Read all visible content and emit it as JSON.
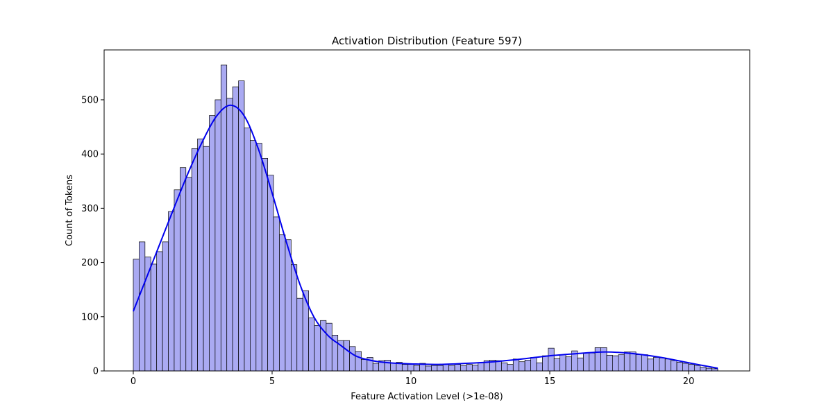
{
  "chart_data": {
    "type": "bar",
    "title": "Activation Distribution (Feature 597)",
    "xlabel": "Feature Activation Level (>1e-08)",
    "ylabel": "Count of Tokens",
    "xlim": [
      -1.05,
      22.2
    ],
    "ylim": [
      0,
      592
    ],
    "x_ticks": [
      0,
      5,
      10,
      15,
      20
    ],
    "y_ticks": [
      0,
      100,
      200,
      300,
      400,
      500
    ],
    "grid": false,
    "legend": "none",
    "bar_color": "#aaaaf2",
    "bar_edge_color": "#000000",
    "kde_color": "#0000ee",
    "bins": {
      "start": 0.0,
      "width": 0.2105,
      "counts": [
        206,
        238,
        210,
        197,
        220,
        238,
        294,
        334,
        375,
        357,
        410,
        428,
        414,
        471,
        500,
        564,
        503,
        524,
        535,
        448,
        425,
        420,
        392,
        361,
        284,
        251,
        242,
        196,
        134,
        148,
        98,
        84,
        93,
        88,
        66,
        56,
        56,
        45,
        36,
        21,
        25,
        14,
        19,
        20,
        14,
        16,
        12,
        12,
        10,
        14,
        9,
        10,
        10,
        12,
        10,
        12,
        10,
        12,
        11,
        15,
        19,
        20,
        19,
        15,
        12,
        22,
        17,
        20,
        25,
        15,
        28,
        42,
        23,
        30,
        26,
        37,
        24,
        33,
        33,
        43,
        43,
        29,
        28,
        30,
        35,
        35,
        30,
        30,
        22,
        25,
        24,
        22,
        19,
        16,
        14,
        12,
        10,
        7,
        5,
        4
      ]
    },
    "kde": {
      "x": [
        0,
        0.5,
        1,
        1.5,
        2,
        2.5,
        3,
        3.5,
        4,
        4.5,
        5,
        5.5,
        6,
        6.5,
        7,
        7.5,
        8,
        8.5,
        9,
        9.5,
        10,
        11,
        12,
        13,
        14,
        15,
        16,
        17,
        18,
        19,
        20,
        21.05
      ],
      "y": [
        110,
        175,
        240,
        305,
        368,
        424,
        470,
        490,
        470,
        410,
        328,
        240,
        160,
        100,
        66,
        46,
        28,
        20,
        16,
        14,
        13,
        12,
        14,
        17,
        22,
        28,
        32,
        35,
        32,
        25,
        15,
        5
      ]
    }
  }
}
